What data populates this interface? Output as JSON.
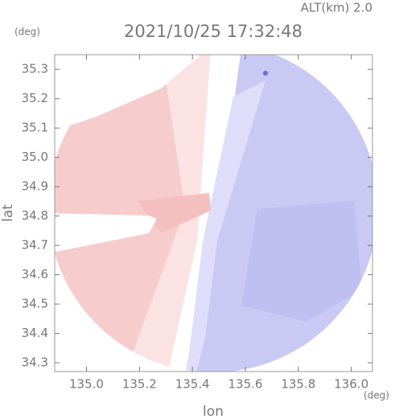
{
  "chart_data": {
    "type": "image",
    "title": "2021/10/25 17:32:48",
    "subtitle": "ALT(km) 2.0",
    "x_label": "lon",
    "y_label": "lat",
    "x_unit": "(deg)",
    "y_unit": "(deg)",
    "xlim": [
      134.88,
      136.08
    ],
    "xticks": [
      {
        "value": 135.0,
        "label": "135.0"
      },
      135.2,
      135.4,
      135.6,
      135.8,
      {
        "value": 136.0,
        "label": "136.0"
      }
    ],
    "ylim": [
      34.27,
      35.35
    ],
    "yticks": [
      34.3,
      34.4,
      34.5,
      34.6,
      34.7,
      34.8,
      34.9,
      {
        "value": 35.0,
        "label": "35.0"
      },
      35.1,
      35.2,
      35.3
    ]
  }
}
